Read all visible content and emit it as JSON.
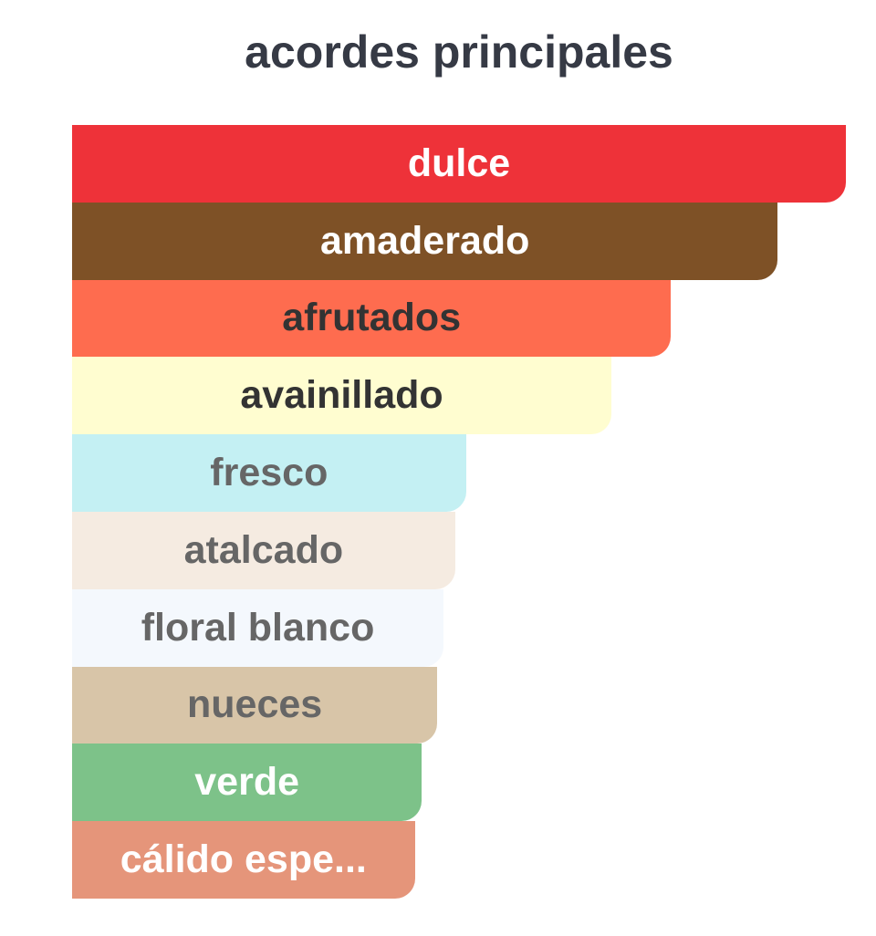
{
  "chart_data": {
    "type": "bar",
    "orientation": "horizontal",
    "title": "acordes principales",
    "unit": "percent of top accord",
    "categories": [
      "dulce",
      "amaderado",
      "afrutados",
      "avainillado",
      "fresco",
      "atalcado",
      "floral blanco",
      "nueces",
      "verde",
      "cálido espe..."
    ],
    "values": [
      100,
      91.2,
      77.4,
      69.7,
      50.9,
      49.5,
      48.0,
      47.2,
      45.2,
      44.3
    ],
    "colors": [
      "#EE3239",
      "#7E5126",
      "#FE6C4F",
      "#FFFDD0",
      "#C4F0F3",
      "#F5EBE1",
      "#F4F8FD",
      "#D8C5A8",
      "#7DC289",
      "#E5957A"
    ],
    "text_colors": [
      "#FFFFFF",
      "#FFFFFF",
      "#333333",
      "#333333",
      "#666666",
      "#666666",
      "#666666",
      "#666666",
      "#FFFFFF",
      "#FFFFFF"
    ],
    "axes": "none",
    "grid": false,
    "legend": "none"
  }
}
